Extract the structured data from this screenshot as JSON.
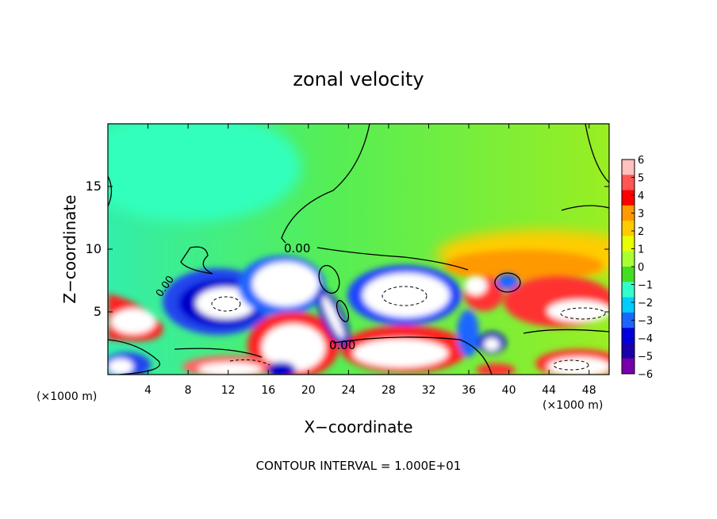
{
  "chart_data": {
    "type": "heatmap",
    "title": "zonal velocity",
    "xlabel": "X−coordinate",
    "ylabel": "Z−coordinate",
    "x_unit": "(×1000 m)",
    "z_unit": "(×1000 m)",
    "xlim": [
      0,
      50
    ],
    "ylim": [
      0,
      20
    ],
    "x_ticks": [
      4,
      8,
      12,
      16,
      20,
      24,
      28,
      32,
      36,
      40,
      44,
      48
    ],
    "y_ticks": [
      5,
      10,
      15
    ],
    "colorbar_ticks": [
      6,
      5,
      4,
      3,
      2,
      1,
      0,
      -1,
      -2,
      -3,
      -4,
      -5,
      -6
    ],
    "colorbar_colors": [
      "#ffc0c0",
      "#ff5555",
      "#ff0000",
      "#ff9900",
      "#ffcc00",
      "#e8ff00",
      "#aaff33",
      "#44dd22",
      "#33ffcc",
      "#00ccff",
      "#1a66ff",
      "#0000dd",
      "#1a00aa",
      "#7700aa"
    ],
    "contour_labels": [
      "0.00",
      "0.00",
      "0.00"
    ],
    "contour_interval": "CONTOUR INTERVAL = 1.000E+01",
    "background_color": "#44ee55"
  }
}
